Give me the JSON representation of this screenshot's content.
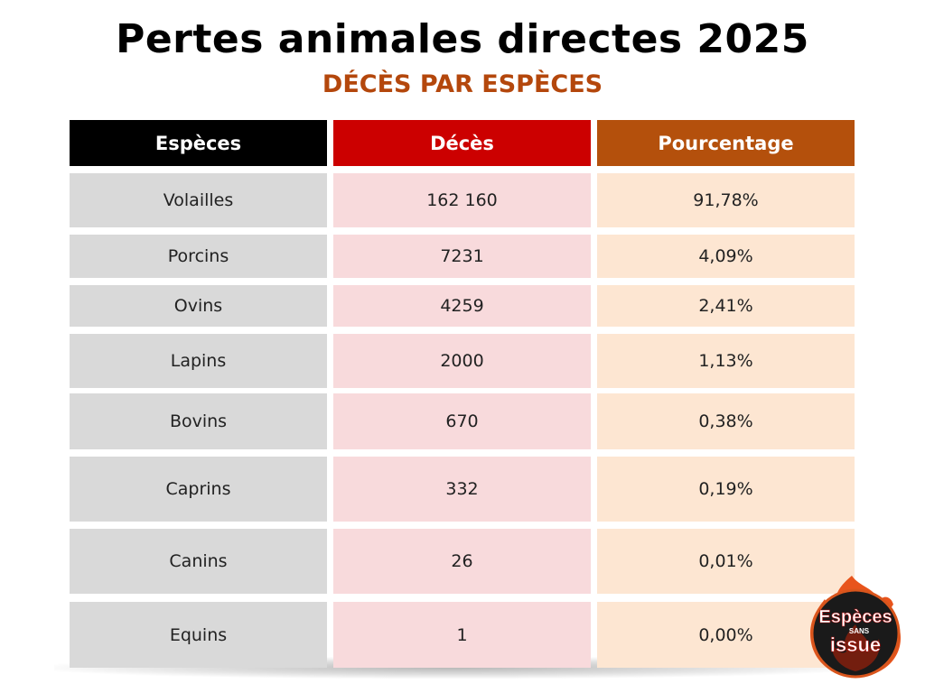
{
  "title": "Pertes animales directes 2025",
  "subtitle": "DÉCÈS PAR ESPÈCES",
  "colors": {
    "col1_header": "#000000",
    "col2_header": "#cc0000",
    "col3_header": "#b4500c",
    "col1_cell": "#d9d9d9",
    "col2_cell": "#f8dadc",
    "col3_cell": "#fde6d2",
    "subtitle": "#b4470c"
  },
  "chart_data": {
    "type": "table",
    "title": "Pertes animales directes 2025",
    "subtitle": "DÉCÈS PAR ESPÈCES",
    "columns": [
      "Espèces",
      "Décès",
      "Pourcentage"
    ],
    "rows": [
      [
        "Volailles",
        "162 160",
        "91,78%"
      ],
      [
        "Porcins",
        "7231",
        "4,09%"
      ],
      [
        "Ovins",
        "4259",
        "2,41%"
      ],
      [
        "Lapins",
        "2000",
        "1,13%"
      ],
      [
        "Bovins",
        "670",
        "0,38%"
      ],
      [
        "Caprins",
        "332",
        "0,19%"
      ],
      [
        "Canins",
        "26",
        "0,01%"
      ],
      [
        "Equins",
        "1",
        "0,00%"
      ]
    ]
  },
  "logo": {
    "line1": "Espèces",
    "line2": "SANS",
    "line3": "issue"
  }
}
